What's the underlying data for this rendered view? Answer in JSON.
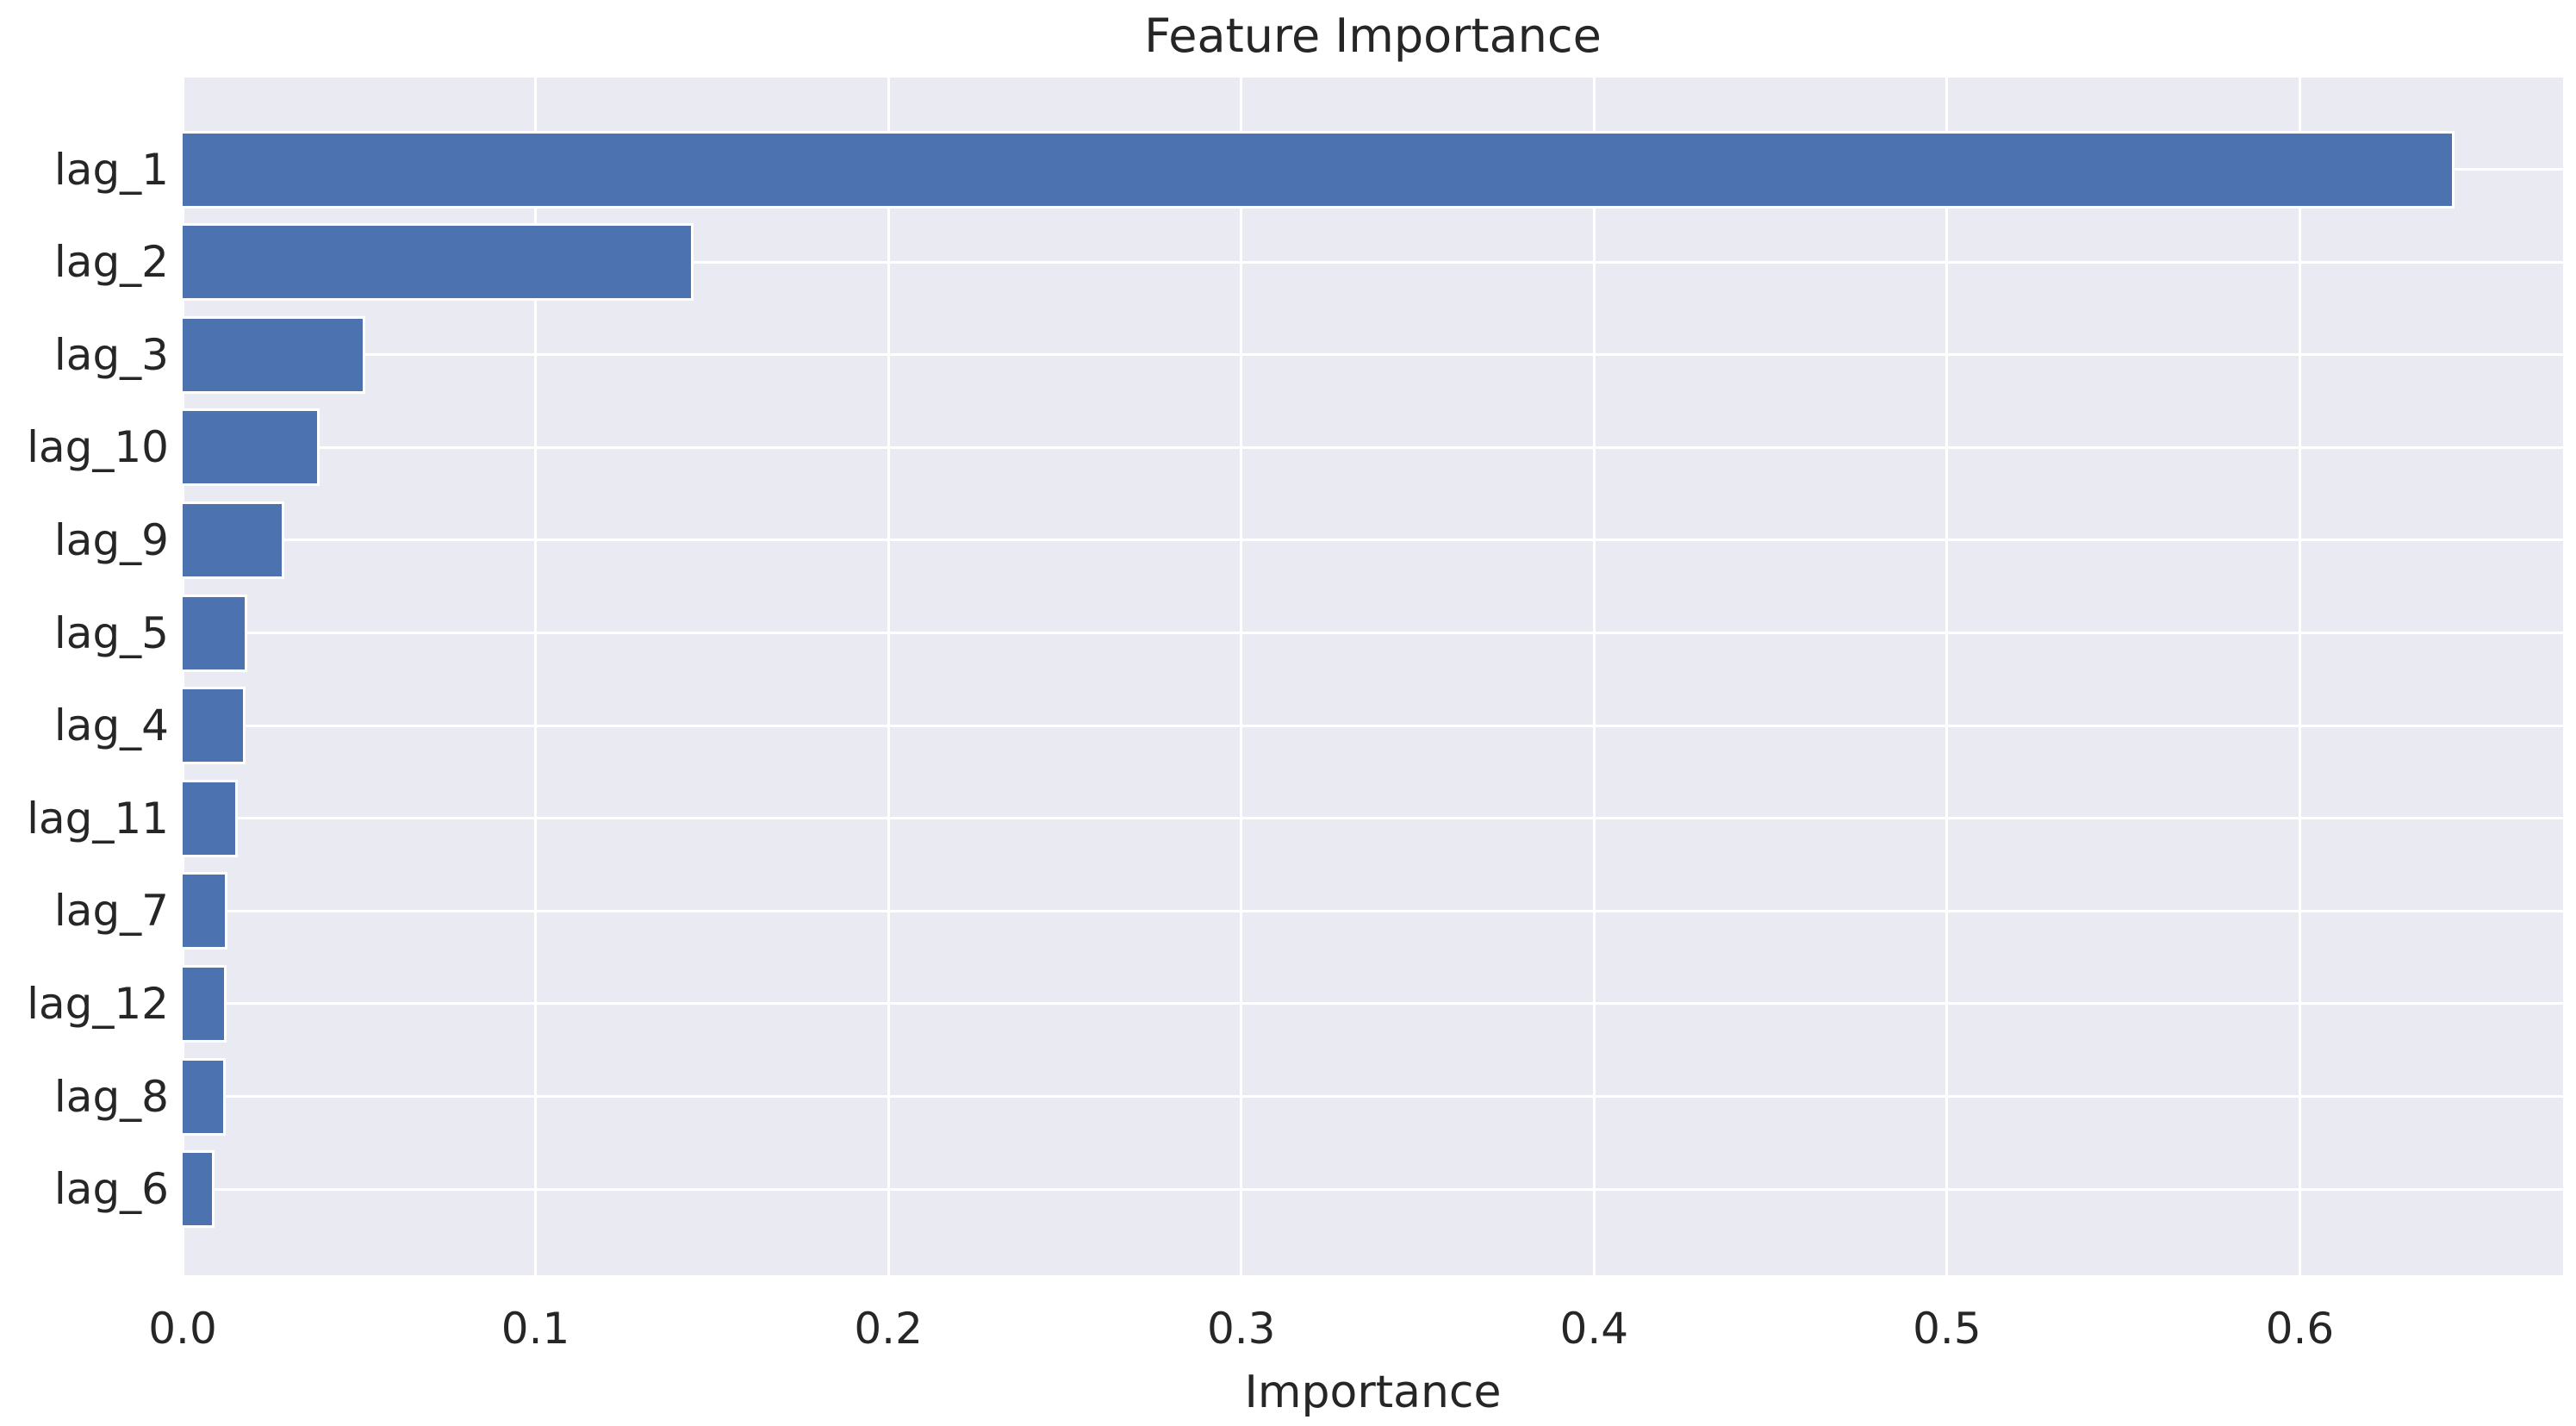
{
  "chart_data": {
    "type": "bar",
    "orientation": "horizontal",
    "title": "Feature Importance",
    "xlabel": "Importance",
    "ylabel": "",
    "categories": [
      "lag_1",
      "lag_2",
      "lag_3",
      "lag_10",
      "lag_9",
      "lag_5",
      "lag_4",
      "lag_11",
      "lag_7",
      "lag_12",
      "lag_8",
      "lag_6"
    ],
    "values": [
      0.643,
      0.144,
      0.051,
      0.038,
      0.028,
      0.0176,
      0.0172,
      0.0149,
      0.012,
      0.0118,
      0.0114,
      0.0083
    ],
    "x_ticks": [
      0.0,
      0.1,
      0.2,
      0.3,
      0.4,
      0.5,
      0.6
    ],
    "x_tick_labels": [
      "0.0",
      "0.1",
      "0.2",
      "0.3",
      "0.4",
      "0.5",
      "0.6"
    ],
    "xlim": [
      0,
      0.6746
    ],
    "grid": true,
    "legend": false,
    "colors": {
      "bar_fill": "#4C72B0",
      "bar_edge": "#FFFFFF",
      "axes_background": "#EAEAF2",
      "figure_background": "#FFFFFF",
      "gridline": "#FFFFFF",
      "text": "#262626"
    }
  }
}
